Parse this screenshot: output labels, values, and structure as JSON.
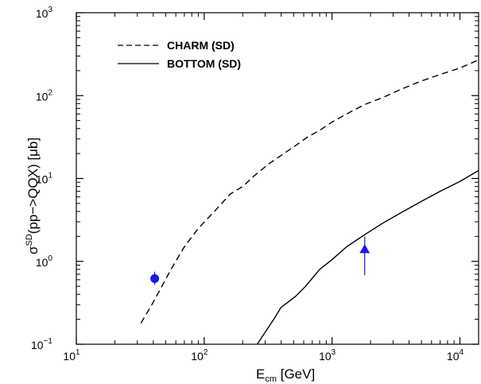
{
  "chart_data": {
    "type": "line",
    "x_scale": "log",
    "y_scale": "log",
    "xlim": [
      10,
      14000
    ],
    "ylim": [
      0.1,
      1000
    ],
    "x_ticks": [
      {
        "value": 10,
        "base": "10",
        "exp": "1"
      },
      {
        "value": 100,
        "base": "10",
        "exp": "2"
      },
      {
        "value": 1000,
        "base": "10",
        "exp": "3"
      },
      {
        "value": 10000,
        "base": "10",
        "exp": "4"
      }
    ],
    "y_ticks": [
      {
        "value": 0.1,
        "base": "10",
        "exp": "−1"
      },
      {
        "value": 1,
        "base": "10",
        "exp": "0"
      },
      {
        "value": 10,
        "base": "10",
        "exp": "1"
      },
      {
        "value": 100,
        "base": "10",
        "exp": "2"
      },
      {
        "value": 1000,
        "base": "10",
        "exp": "3"
      }
    ],
    "xlabel": {
      "main": "E",
      "sub": "cm",
      "rest": " [GeV]"
    },
    "ylabel": {
      "main": "σ",
      "sup": "SD",
      "rest": "(pp−>QQX) [μb]"
    },
    "legend_position": "top-left",
    "series": [
      {
        "name": "CHARM (SD)",
        "style": "dashed",
        "color": "#000000",
        "x": [
          32,
          38,
          45,
          55,
          70,
          90,
          120,
          160,
          200,
          250,
          320,
          400,
          500,
          650,
          800,
          1000,
          1300,
          1800,
          2500,
          3500,
          5000,
          7000,
          10000,
          14000
        ],
        "y": [
          0.18,
          0.28,
          0.45,
          0.8,
          1.5,
          2.5,
          4.0,
          6.5,
          8.0,
          11.0,
          15.0,
          19.0,
          24.0,
          32.0,
          38.0,
          48.0,
          60.0,
          78.0,
          95.0,
          120.0,
          150.0,
          180.0,
          215.0,
          270.0
        ]
      },
      {
        "name": "BOTTOM (SD)",
        "style": "solid",
        "color": "#000000",
        "x": [
          260,
          300,
          350,
          400,
          450,
          520,
          620,
          800,
          1000,
          1300,
          1800,
          2500,
          3500,
          5000,
          7000,
          10000,
          14000
        ],
        "y": [
          0.1,
          0.14,
          0.2,
          0.28,
          0.32,
          0.38,
          0.5,
          0.8,
          1.05,
          1.5,
          2.1,
          2.9,
          3.9,
          5.3,
          7.0,
          9.2,
          12.5
        ]
      }
    ],
    "points": [
      {
        "marker": "circle",
        "color": "#1a1ae6",
        "x": 41,
        "y": 0.62,
        "y_low": 0.52,
        "y_high": 0.75
      },
      {
        "marker": "triangle",
        "color": "#1a1ae6",
        "x": 1800,
        "y": 1.4,
        "y_low": 0.68,
        "y_high": 2.0
      }
    ]
  }
}
